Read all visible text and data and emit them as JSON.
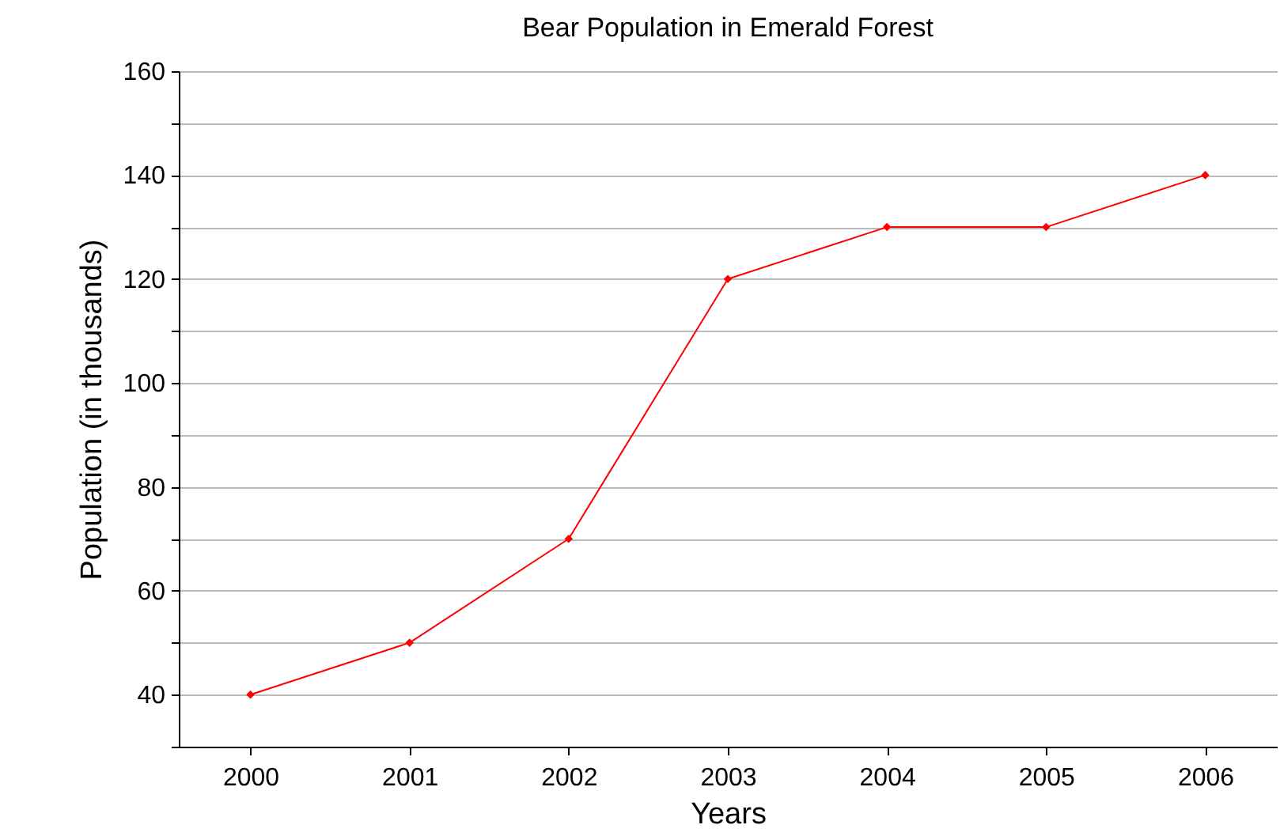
{
  "chart_data": {
    "type": "line",
    "title": "Bear Population in Emerald Forest",
    "xlabel": "Years",
    "ylabel": "Population (in thousands)",
    "categories": [
      "2000",
      "2001",
      "2002",
      "2003",
      "2004",
      "2005",
      "2006"
    ],
    "series": [
      {
        "color": "#ff0000",
        "values": [
          40,
          50,
          70,
          120,
          130,
          130,
          140
        ]
      }
    ],
    "ylim": [
      30,
      160
    ],
    "yticks": [
      {
        "value": 30,
        "label": null
      },
      40,
      {
        "value": 50,
        "label": null
      },
      60,
      {
        "value": 70,
        "label": null
      },
      80,
      {
        "value": 90,
        "label": null
      },
      100,
      {
        "value": 110,
        "label": null
      },
      120,
      {
        "value": 130,
        "label": null
      },
      140,
      {
        "value": 150,
        "label": null
      },
      160
    ],
    "grid": "y",
    "marker": "diamond",
    "line_style": "solid"
  }
}
